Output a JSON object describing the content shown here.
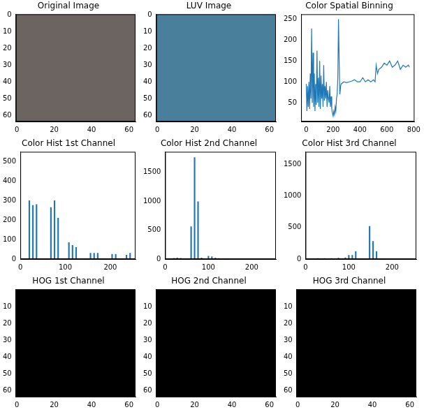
{
  "chart_data": [
    {
      "type": "image",
      "title": "Original Image",
      "color": "#6b6460",
      "xlim": [
        -0.5,
        63.5
      ],
      "ylim": [
        63.5,
        -0.5
      ],
      "xticks": [
        0,
        20,
        40,
        60
      ],
      "yticks": [
        0,
        10,
        20,
        30,
        40,
        50,
        60
      ]
    },
    {
      "type": "image",
      "title": "LUV Image",
      "color": "#4a7f9c",
      "xlim": [
        -0.5,
        63.5
      ],
      "ylim": [
        63.5,
        -0.5
      ],
      "xticks": [
        0,
        20,
        40,
        60
      ],
      "yticks": [
        0,
        10,
        20,
        30,
        40,
        50,
        60
      ]
    },
    {
      "type": "line",
      "title": "Color Spatial Binning",
      "color": "#1f77b4",
      "x": [
        0,
        5,
        10,
        15,
        20,
        25,
        30,
        35,
        40,
        45,
        50,
        55,
        60,
        65,
        70,
        75,
        80,
        85,
        90,
        95,
        100,
        105,
        110,
        115,
        120,
        125,
        130,
        135,
        140,
        145,
        150,
        155,
        160,
        165,
        170,
        175,
        180,
        185,
        190,
        195,
        200,
        205,
        210,
        215,
        220,
        225,
        230,
        235,
        240,
        245,
        250,
        256,
        260,
        280,
        300,
        320,
        340,
        360,
        380,
        400,
        420,
        440,
        460,
        480,
        500,
        512,
        520,
        530,
        540,
        560,
        580,
        600,
        620,
        640,
        660,
        680,
        700,
        720,
        740,
        760,
        767
      ],
      "values": [
        95,
        30,
        90,
        40,
        100,
        35,
        120,
        60,
        228,
        50,
        170,
        40,
        120,
        30,
        95,
        45,
        175,
        50,
        110,
        40,
        150,
        35,
        115,
        60,
        95,
        40,
        140,
        55,
        90,
        60,
        100,
        40,
        80,
        60,
        50,
        90,
        40,
        65,
        35,
        25,
        18,
        30,
        22,
        40,
        30,
        60,
        70,
        110,
        250,
        150,
        70,
        90,
        95,
        100,
        98,
        100,
        102,
        105,
        100,
        100,
        110,
        100,
        105,
        100,
        105,
        100,
        140,
        120,
        130,
        135,
        145,
        140,
        150,
        135,
        140,
        150,
        130,
        140,
        135,
        140,
        135
      ],
      "xlim": [
        -38,
        805
      ],
      "ylim": [
        5,
        262
      ],
      "xticks": [
        0,
        200,
        400,
        600,
        800
      ],
      "yticks": [
        50,
        100,
        150,
        200,
        250
      ]
    },
    {
      "type": "histogram",
      "title": "Color Hist 1st Channel",
      "color": "#1f77b4",
      "bins": [
        0,
        8,
        16,
        24,
        32,
        40,
        48,
        56,
        64,
        72,
        80,
        88,
        96,
        104,
        112,
        120,
        128,
        136,
        144,
        152,
        160,
        168,
        176,
        184,
        192,
        200,
        208,
        216,
        224,
        232,
        240,
        248,
        256
      ],
      "values": [
        0,
        0,
        300,
        275,
        280,
        0,
        0,
        0,
        265,
        300,
        210,
        0,
        0,
        85,
        70,
        60,
        0,
        0,
        0,
        30,
        30,
        30,
        0,
        0,
        0,
        25,
        25,
        0,
        0,
        20,
        30,
        0
      ],
      "xlim": [
        0,
        256
      ],
      "ylim": [
        0,
        550
      ],
      "xticks": [
        0,
        100,
        200
      ],
      "yticks": [
        0,
        100,
        200,
        300,
        400,
        500
      ]
    },
    {
      "type": "histogram",
      "title": "Color Hist 2nd Channel",
      "color": "#1f77b4",
      "bins": [
        0,
        8,
        16,
        24,
        32,
        40,
        48,
        56,
        64,
        72,
        80,
        88,
        96,
        104,
        112,
        120,
        128,
        136,
        144,
        152,
        160,
        168,
        176,
        184,
        192,
        200,
        208,
        216,
        224,
        232,
        240,
        248,
        256
      ],
      "values": [
        0,
        0,
        15,
        20,
        15,
        0,
        0,
        560,
        1750,
        990,
        20,
        0,
        50,
        40,
        20,
        10,
        0,
        0,
        0,
        0,
        0,
        0,
        0,
        0,
        0,
        0,
        0,
        0,
        0,
        0,
        0,
        0
      ],
      "xlim": [
        0,
        256
      ],
      "ylim": [
        0,
        1850
      ],
      "xticks": [
        0,
        100,
        200
      ],
      "yticks": [
        0,
        500,
        1000,
        1500
      ]
    },
    {
      "type": "histogram",
      "title": "Color Hist 3rd Channel",
      "color": "#1f77b4",
      "bins": [
        0,
        8,
        16,
        24,
        32,
        40,
        48,
        56,
        64,
        72,
        80,
        88,
        96,
        104,
        112,
        120,
        128,
        136,
        144,
        152,
        160,
        168,
        176,
        184,
        192,
        200,
        208,
        216,
        224,
        232,
        240,
        248,
        256
      ],
      "values": [
        0,
        0,
        0,
        10,
        0,
        10,
        0,
        10,
        0,
        15,
        0,
        20,
        60,
        60,
        120,
        0,
        0,
        0,
        520,
        280,
        120,
        0,
        0,
        0,
        0,
        0,
        0,
        0,
        0,
        0,
        0,
        0
      ],
      "xlim": [
        0,
        256
      ],
      "ylim": [
        0,
        1700
      ],
      "xticks": [
        0,
        100,
        200
      ],
      "yticks": [
        0,
        500,
        1000,
        1500
      ]
    },
    {
      "type": "image",
      "title": "HOG 1st Channel",
      "color": "#000000",
      "xlim": [
        -0.5,
        63.5
      ],
      "ylim": [
        63.5,
        -0.5
      ],
      "xticks": [
        0,
        20,
        40,
        60
      ],
      "yticks": [
        10,
        20,
        30,
        40,
        50,
        60
      ]
    },
    {
      "type": "image",
      "title": "HOG 2nd Channel",
      "color": "#000000",
      "xlim": [
        -0.5,
        63.5
      ],
      "ylim": [
        63.5,
        -0.5
      ],
      "xticks": [
        0,
        20,
        40,
        60
      ],
      "yticks": [
        10,
        20,
        30,
        40,
        50,
        60
      ]
    },
    {
      "type": "image",
      "title": "HOG 3rd Channel",
      "color": "#000000",
      "xlim": [
        -0.5,
        63.5
      ],
      "ylim": [
        63.5,
        -0.5
      ],
      "xticks": [
        0,
        20,
        40,
        60
      ],
      "yticks": [
        10,
        20,
        30,
        40,
        50,
        60
      ]
    }
  ]
}
